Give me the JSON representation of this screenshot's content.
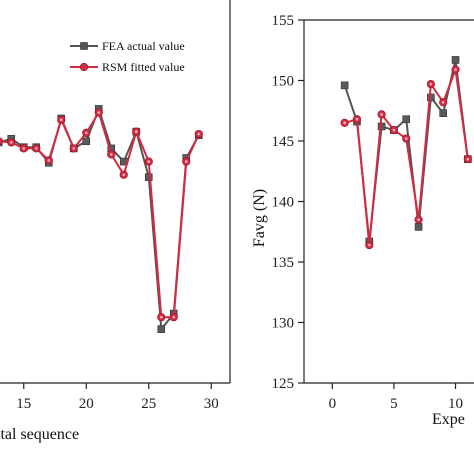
{
  "chart_data": [
    {
      "type": "line",
      "xlabel": "ital sequence",
      "ylabel": "",
      "xlim": [
        13.1,
        31.5
      ],
      "ylim": [
        125,
        157
      ],
      "xticks": [
        15,
        20,
        25,
        30
      ],
      "legend": {
        "placement": "top-right",
        "entries": [
          "FEA actual value",
          "RSM fitted value"
        ]
      },
      "colors": {
        "fea": "#555555",
        "rsm": "#d42a42"
      },
      "series": [
        {
          "name": "FEA actual value",
          "x": [
            13,
            14,
            15,
            16,
            17,
            18,
            19,
            20,
            21,
            22,
            23,
            24,
            25,
            26,
            27,
            28,
            29
          ],
          "y": [
            145.1,
            145.4,
            144.7,
            144.7,
            143.4,
            147.1,
            144.6,
            145.2,
            147.9,
            144.6,
            143.5,
            146.0,
            142.2,
            129.5,
            130.8,
            143.8,
            145.7
          ]
        },
        {
          "name": "RSM fitted value",
          "x": [
            13,
            14,
            15,
            16,
            17,
            18,
            19,
            20,
            21,
            22,
            23,
            24,
            25,
            26,
            27,
            28,
            29
          ],
          "y": [
            145.2,
            145.1,
            144.6,
            144.6,
            143.6,
            147.0,
            144.6,
            145.9,
            147.6,
            144.1,
            142.4,
            146.0,
            143.5,
            130.5,
            130.5,
            143.5,
            145.8
          ]
        }
      ]
    },
    {
      "type": "line",
      "xlabel": "Expe",
      "ylabel": "Favg (N)",
      "xlim": [
        -2.3,
        11.5
      ],
      "ylim": [
        125,
        155
      ],
      "xticks": [
        0,
        5,
        10
      ],
      "xtick_labels": [
        "0",
        "5",
        "10"
      ],
      "yticks": [
        125,
        130,
        135,
        140,
        145,
        150,
        155
      ],
      "colors": {
        "fea": "#555555",
        "rsm": "#d42a42"
      },
      "series": [
        {
          "name": "FEA actual value",
          "x": [
            1,
            2,
            3,
            4,
            5,
            6,
            7,
            8,
            9,
            10,
            11
          ],
          "y": [
            149.6,
            146.6,
            136.7,
            146.2,
            145.9,
            146.8,
            137.9,
            148.6,
            147.3,
            151.7,
            143.5
          ]
        },
        {
          "name": "RSM fitted value",
          "x": [
            1,
            2,
            3,
            4,
            5,
            6,
            7,
            8,
            9,
            10,
            11
          ],
          "y": [
            146.5,
            146.8,
            136.4,
            147.2,
            145.9,
            145.2,
            138.5,
            149.7,
            148.2,
            150.9,
            143.5
          ]
        }
      ]
    }
  ]
}
